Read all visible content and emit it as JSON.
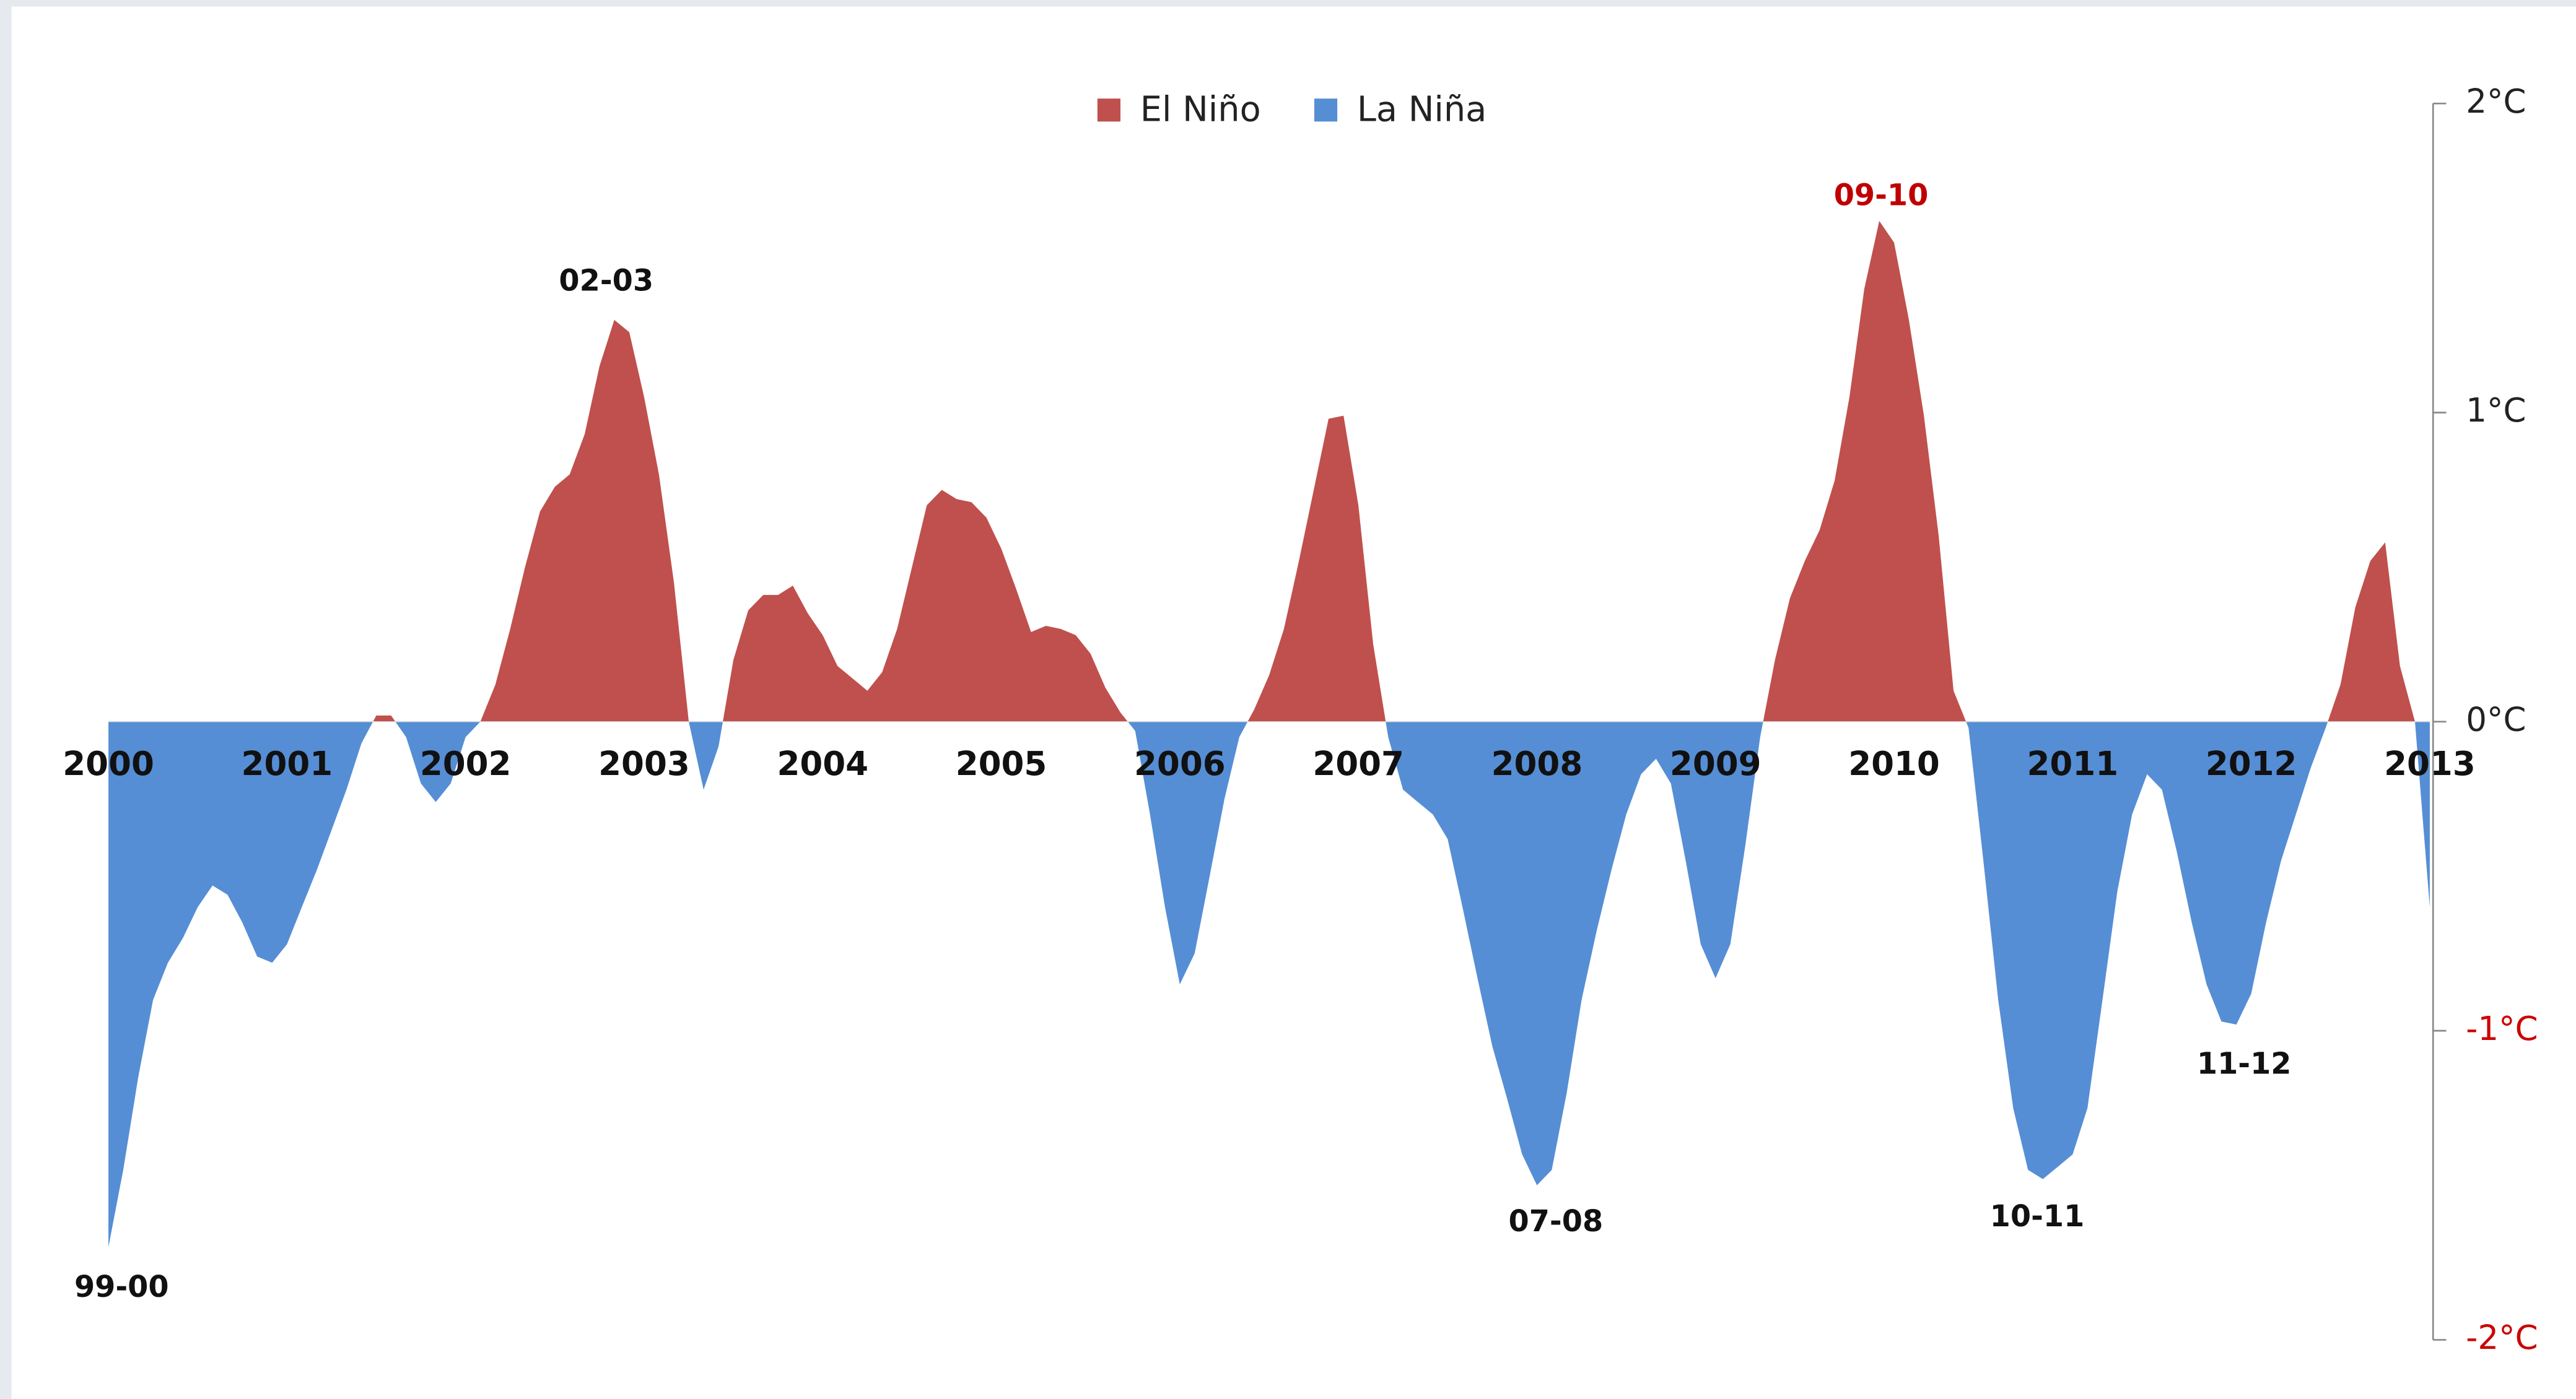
{
  "chart_data": {
    "type": "area",
    "legend": [
      {
        "name": "El Niño",
        "color": "#c0504d"
      },
      {
        "name": "La Niña",
        "color": "#558ed5"
      }
    ],
    "x": [
      2000,
      2000.083,
      2000.167,
      2000.25,
      2000.333,
      2000.417,
      2000.5,
      2000.583,
      2000.667,
      2000.75,
      2000.833,
      2000.917,
      2001,
      2001.083,
      2001.167,
      2001.25,
      2001.333,
      2001.417,
      2001.5,
      2001.583,
      2001.667,
      2001.75,
      2001.833,
      2001.917,
      2002,
      2002.083,
      2002.167,
      2002.25,
      2002.333,
      2002.417,
      2002.5,
      2002.583,
      2002.667,
      2002.75,
      2002.833,
      2002.917,
      2003,
      2003.083,
      2003.167,
      2003.25,
      2003.333,
      2003.417,
      2003.5,
      2003.583,
      2003.667,
      2003.75,
      2003.833,
      2003.917,
      2004,
      2004.083,
      2004.167,
      2004.25,
      2004.333,
      2004.417,
      2004.5,
      2004.583,
      2004.667,
      2004.75,
      2004.833,
      2004.917,
      2005,
      2005.083,
      2005.167,
      2005.25,
      2005.333,
      2005.417,
      2005.5,
      2005.583,
      2005.667,
      2005.75,
      2005.833,
      2005.917,
      2006,
      2006.083,
      2006.167,
      2006.25,
      2006.333,
      2006.417,
      2006.5,
      2006.583,
      2006.667,
      2006.75,
      2006.833,
      2006.917,
      2007,
      2007.083,
      2007.167,
      2007.25,
      2007.333,
      2007.417,
      2007.5,
      2007.583,
      2007.667,
      2007.75,
      2007.833,
      2007.917,
      2008,
      2008.083,
      2008.167,
      2008.25,
      2008.333,
      2008.417,
      2008.5,
      2008.583,
      2008.667,
      2008.75,
      2008.833,
      2008.917,
      2009,
      2009.083,
      2009.167,
      2009.25,
      2009.333,
      2009.417,
      2009.5,
      2009.583,
      2009.667,
      2009.75,
      2009.833,
      2009.917,
      2010,
      2010.083,
      2010.167,
      2010.25,
      2010.333,
      2010.417,
      2010.5,
      2010.583,
      2010.667,
      2010.75,
      2010.833,
      2010.917,
      2011,
      2011.083,
      2011.167,
      2011.25,
      2011.333,
      2011.417,
      2011.5,
      2011.583,
      2011.667,
      2011.75,
      2011.833,
      2011.917,
      2012,
      2012.083,
      2012.167,
      2012.25,
      2012.333,
      2012.417,
      2012.5,
      2012.583,
      2012.667,
      2012.75,
      2012.833,
      2012.917,
      2013
    ],
    "values": [
      -1.7,
      -1.45,
      -1.15,
      -0.9,
      -0.78,
      -0.7,
      -0.6,
      -0.53,
      -0.56,
      -0.65,
      -0.76,
      -0.78,
      -0.72,
      -0.6,
      -0.48,
      -0.35,
      -0.22,
      -0.07,
      0.02,
      0.02,
      -0.05,
      -0.2,
      -0.26,
      -0.2,
      -0.05,
      0,
      0.12,
      0.3,
      0.5,
      0.68,
      0.76,
      0.8,
      0.93,
      1.15,
      1.3,
      1.26,
      1.05,
      0.8,
      0.45,
      0,
      -0.22,
      -0.08,
      0.2,
      0.36,
      0.41,
      0.41,
      0.44,
      0.35,
      0.28,
      0.18,
      0.14,
      0.1,
      0.16,
      0.3,
      0.5,
      0.7,
      0.75,
      0.72,
      0.71,
      0.66,
      0.56,
      0.43,
      0.29,
      0.31,
      0.3,
      0.28,
      0.22,
      0.11,
      0.03,
      -0.03,
      -0.3,
      -0.6,
      -0.85,
      -0.75,
      -0.5,
      -0.25,
      -0.05,
      0.04,
      0.15,
      0.3,
      0.52,
      0.75,
      0.98,
      0.99,
      0.7,
      0.25,
      -0.05,
      -0.22,
      -0.26,
      -0.3,
      -0.38,
      -0.6,
      -0.83,
      -1.05,
      -1.22,
      -1.4,
      -1.5,
      -1.45,
      -1.2,
      -0.9,
      -0.68,
      -0.48,
      -0.3,
      -0.17,
      -0.12,
      -0.2,
      -0.45,
      -0.72,
      -0.83,
      -0.72,
      -0.4,
      -0.05,
      0.2,
      0.4,
      0.52,
      0.62,
      0.78,
      1.05,
      1.4,
      1.62,
      1.55,
      1.3,
      0.99,
      0.6,
      0.1,
      -0.02,
      -0.45,
      -0.9,
      -1.25,
      -1.45,
      -1.48,
      -1.44,
      -1.4,
      -1.25,
      -0.9,
      -0.55,
      -0.3,
      -0.17,
      -0.22,
      -0.42,
      -0.65,
      -0.85,
      -0.97,
      -0.98,
      -0.88,
      -0.65,
      -0.45,
      -0.3,
      -0.15,
      -0.02,
      0.12,
      0.37,
      0.52,
      0.58,
      0.18,
      0,
      -0.6
    ],
    "xlim": [
      2000,
      2013
    ],
    "xticks": [
      2000,
      2001,
      2002,
      2003,
      2004,
      2005,
      2006,
      2007,
      2008,
      2009,
      2010,
      2011,
      2012,
      2013
    ],
    "ylim": [
      -2,
      2
    ],
    "yticks": [
      {
        "value": 2,
        "label": "2°C"
      },
      {
        "value": 1,
        "label": "1°C"
      },
      {
        "value": 0,
        "label": "0°C"
      },
      {
        "value": -1,
        "label": "-1°C"
      },
      {
        "value": -2,
        "label": "-2°C"
      }
    ],
    "ytick_colors": [
      "#222222",
      "#222222",
      "#222222",
      "#cc0000",
      "#cc0000"
    ],
    "annotations": [
      {
        "text": "99-00",
        "color": "#111111"
      },
      {
        "text": "02-03",
        "color": "#111111"
      },
      {
        "text": "09-10",
        "color": "#c00000"
      },
      {
        "text": "07-08",
        "color": "#111111"
      },
      {
        "text": "10-11",
        "color": "#111111"
      },
      {
        "text": "11-12",
        "color": "#111111"
      }
    ]
  }
}
